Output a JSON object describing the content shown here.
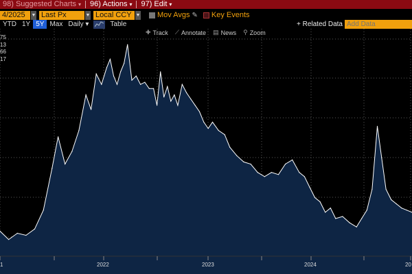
{
  "menubar": {
    "suggested": "98) Suggested Charts",
    "actions": "96) Actions",
    "edit": "97) Edit"
  },
  "controls": {
    "date": "4/2025",
    "field": "Last Px",
    "currency": "Local CCY",
    "mov_avgs": "Mov Avgs",
    "key_events": "Key Events"
  },
  "ranges": {
    "items": [
      "YTD",
      "1Y",
      "5Y",
      "Max",
      "Daily ▾"
    ],
    "active_index": 2,
    "table": "Table"
  },
  "toolbar": {
    "related": "+ Related Data",
    "add_data_placeholder": "Add Data",
    "track": "Track",
    "annotate": "Annotate",
    "news": "News",
    "zoom": "Zoom"
  },
  "y_labels": [
    "75",
    "13",
    "66",
    "17"
  ],
  "chart_data": {
    "type": "area",
    "x_tick_labels": [
      "1",
      "2022",
      "2023",
      "2024",
      "20"
    ],
    "colors": {
      "line": "#ffffff",
      "fill": "#0e2544",
      "grid": "#5a5a5a"
    },
    "grid": true,
    "x": [
      2020.75,
      2020.85,
      2020.95,
      2021.05,
      2021.15,
      2021.25,
      2021.35,
      2021.42,
      2021.5,
      2021.58,
      2021.66,
      2021.74,
      2021.8,
      2021.86,
      2021.92,
      2021.98,
      2022.02,
      2022.06,
      2022.1,
      2022.14,
      2022.18,
      2022.22,
      2022.27,
      2022.32,
      2022.37,
      2022.42,
      2022.47,
      2022.52,
      2022.56,
      2022.6,
      2022.64,
      2022.68,
      2022.72,
      2022.76,
      2022.8,
      2022.85,
      2022.9,
      2022.95,
      2023.0,
      2023.05,
      2023.1,
      2023.15,
      2023.2,
      2023.27,
      2023.34,
      2023.4,
      2023.48,
      2023.56,
      2023.64,
      2023.72,
      2023.8,
      2023.88,
      2023.96,
      2024.04,
      2024.12,
      2024.2,
      2024.26,
      2024.32,
      2024.38,
      2024.44,
      2024.5,
      2024.56,
      2024.62,
      2024.7,
      2024.78,
      2024.86,
      2024.92,
      2024.98,
      2025.04,
      2025.1,
      2025.15,
      2025.2,
      2025.26,
      2025.32,
      2025.38,
      2025.44,
      2025.5
    ],
    "values": [
      10,
      6,
      9,
      8,
      11,
      20,
      40,
      55,
      42,
      48,
      58,
      75,
      68,
      85,
      80,
      88,
      92,
      84,
      80,
      86,
      90,
      99,
      82,
      84,
      80,
      81,
      78,
      78,
      70,
      86,
      74,
      79,
      72,
      75,
      70,
      80,
      76,
      73,
      70,
      67,
      62,
      59,
      62,
      58,
      56,
      50,
      46,
      43,
      42,
      38,
      36,
      38,
      37,
      42,
      44,
      38,
      36,
      31,
      26,
      24,
      19,
      21,
      16,
      17,
      14,
      12,
      16,
      20,
      30,
      60,
      45,
      30,
      25,
      23,
      21,
      20,
      19
    ],
    "ylim": [
      0,
      100
    ]
  }
}
